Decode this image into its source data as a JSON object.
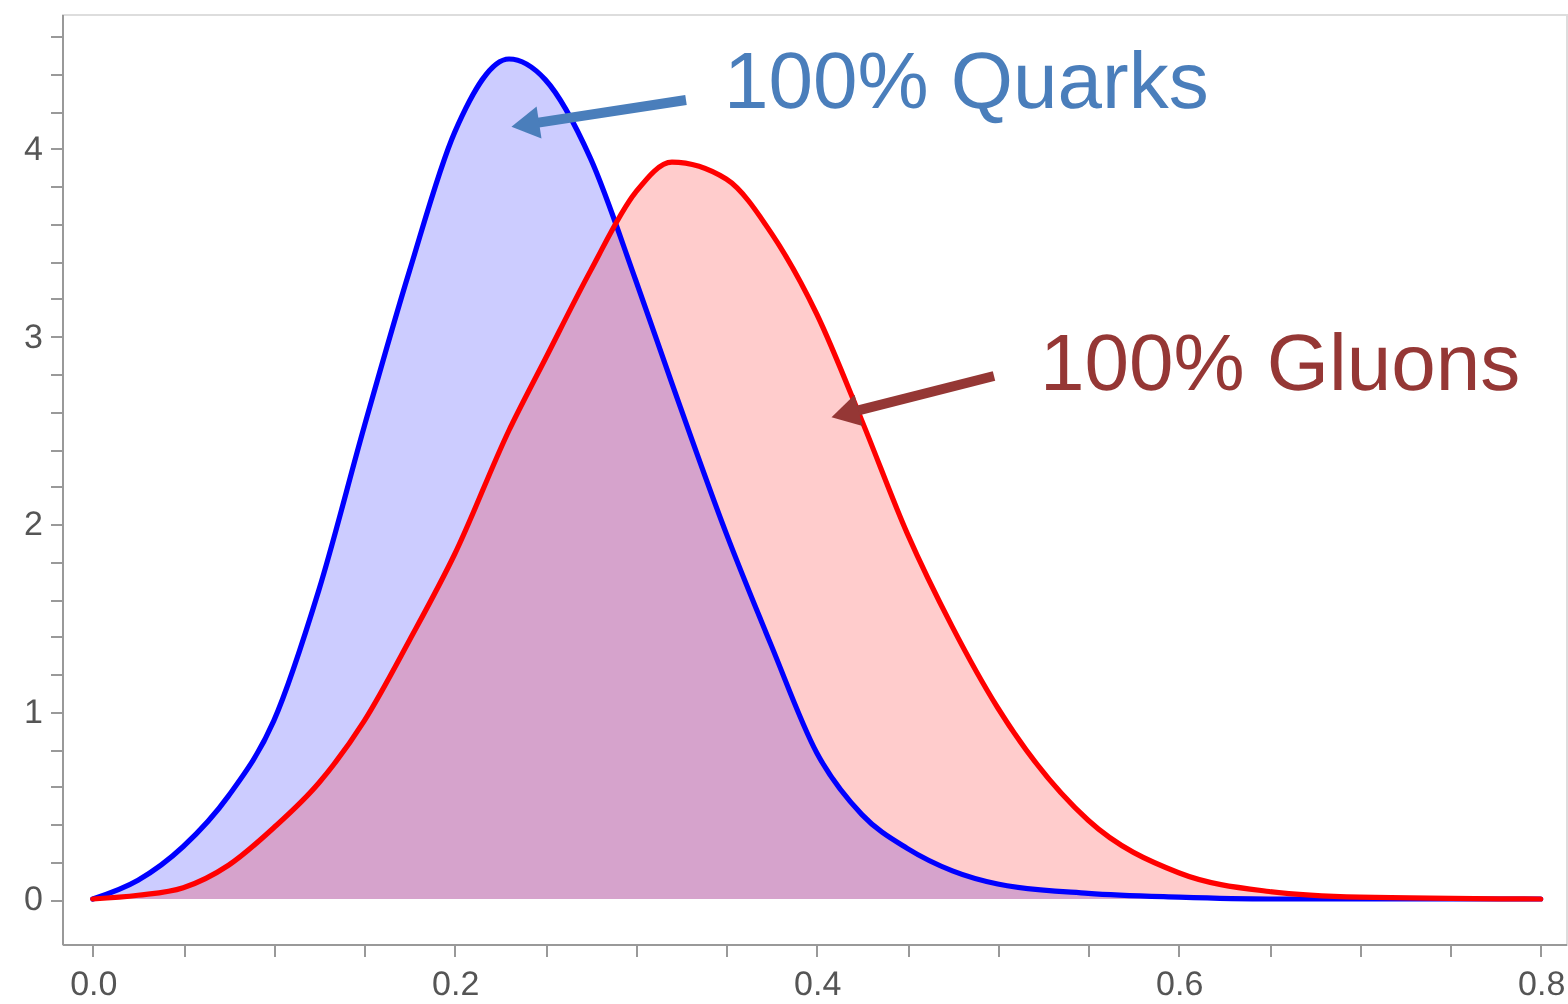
{
  "chart_data": {
    "type": "area",
    "x": [
      0,
      0.025,
      0.05,
      0.075,
      0.1,
      0.125,
      0.15,
      0.175,
      0.2,
      0.23,
      0.25,
      0.275,
      0.3,
      0.32,
      0.35,
      0.375,
      0.4,
      0.425,
      0.45,
      0.475,
      0.5,
      0.55,
      0.6,
      0.65,
      0.7,
      0.8
    ],
    "series": [
      {
        "color": "#0000ff",
        "values": [
          0,
          0.1,
          0.28,
          0.55,
          0.95,
          1.65,
          2.52,
          3.35,
          4.09,
          4.48,
          4.37,
          3.95,
          3.3,
          2.75,
          1.95,
          1.35,
          0.78,
          0.45,
          0.27,
          0.15,
          0.08,
          0.03,
          0.01,
          0,
          0,
          0
        ]
      },
      {
        "color": "#ff0000",
        "values": [
          0,
          0.02,
          0.06,
          0.18,
          0.38,
          0.62,
          0.95,
          1.38,
          1.84,
          2.5,
          2.88,
          3.35,
          3.77,
          3.93,
          3.84,
          3.55,
          3.12,
          2.55,
          1.95,
          1.45,
          1.02,
          0.42,
          0.14,
          0.04,
          0.01,
          0
        ]
      }
    ],
    "xlim": [
      -0.017,
      0.814
    ],
    "ylim": [
      -0.24,
      4.72
    ],
    "xticks": [
      {
        "value": 0,
        "label": "0.0"
      },
      {
        "value": 0.05,
        "label": null
      },
      {
        "value": 0.1,
        "label": null
      },
      {
        "value": 0.15,
        "label": null
      },
      {
        "value": 0.2,
        "label": "0.2"
      },
      {
        "value": 0.25,
        "label": null
      },
      {
        "value": 0.3,
        "label": null
      },
      {
        "value": 0.35,
        "label": null
      },
      {
        "value": 0.4,
        "label": "0.4"
      },
      {
        "value": 0.45,
        "label": null
      },
      {
        "value": 0.5,
        "label": null
      },
      {
        "value": 0.55,
        "label": null
      },
      {
        "value": 0.6,
        "label": "0.6"
      },
      {
        "value": 0.65,
        "label": null
      },
      {
        "value": 0.7,
        "label": null
      },
      {
        "value": 0.75,
        "label": null
      },
      {
        "value": 0.8,
        "label": "0.8"
      }
    ],
    "yticks": [
      0,
      {
        "value": 0.2,
        "label": null
      },
      {
        "value": 0.4,
        "label": null
      },
      {
        "value": 0.6,
        "label": null
      },
      {
        "value": 0.8,
        "label": null
      },
      1,
      {
        "value": 1.2,
        "label": null
      },
      {
        "value": 1.4,
        "label": null
      },
      {
        "value": 1.6,
        "label": null
      },
      {
        "value": 1.8,
        "label": null
      },
      2,
      {
        "value": 2.2,
        "label": null
      },
      {
        "value": 2.4,
        "label": null
      },
      {
        "value": 2.6,
        "label": null
      },
      {
        "value": 2.8,
        "label": null
      },
      3,
      {
        "value": 3.2,
        "label": null
      },
      {
        "value": 3.4,
        "label": null
      },
      {
        "value": 3.6,
        "label": null
      },
      {
        "value": 3.8,
        "label": null
      },
      4,
      {
        "value": 4.2,
        "label": null
      },
      {
        "value": 4.4,
        "label": null
      },
      {
        "value": 4.6,
        "label": null
      }
    ],
    "annotations": [
      "100% Quarks",
      "100% Gluons"
    ],
    "grid": false
  }
}
